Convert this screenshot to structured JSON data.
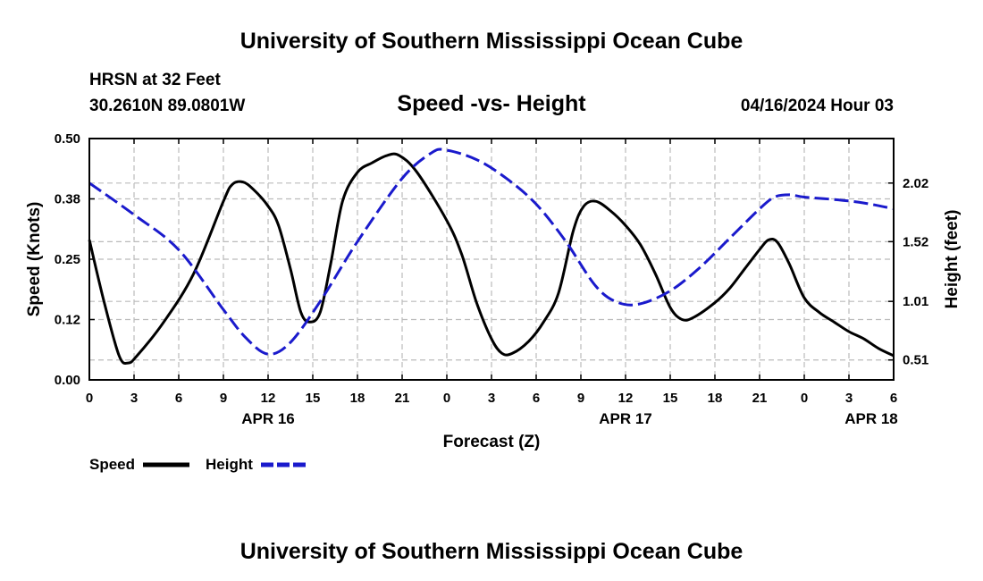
{
  "page": {
    "title_top": "University of Southern Mississippi Ocean Cube",
    "title_bottom": "University of Southern Mississippi Ocean Cube",
    "station_line1": "HRSN at 32 Feet",
    "station_line2": "30.2610N  89.0801W",
    "plot_title": "Speed -vs- Height",
    "datetime": "04/16/2024 Hour 03"
  },
  "colors": {
    "speed": "#000000",
    "height": "#1a1acc",
    "grid": "#bbbbbb"
  },
  "chart_data": {
    "type": "line",
    "title": "Speed -vs- Height",
    "xlabel": "Forecast (Z)",
    "ylabel": "Speed (Knots)",
    "y2label": "Height (feet)",
    "x_unit": "hours since Apr 16 00Z",
    "xlim": [
      0,
      54
    ],
    "ylim": [
      0,
      0.5
    ],
    "y2lim": [
      0.34,
      2.4
    ],
    "x_ticks": [
      0,
      3,
      6,
      9,
      12,
      15,
      18,
      21,
      24,
      27,
      30,
      33,
      36,
      39,
      42,
      45,
      48,
      51,
      54
    ],
    "x_tick_labels": [
      "0",
      "3",
      "6",
      "9",
      "12",
      "15",
      "18",
      "21",
      "0",
      "3",
      "6",
      "9",
      "12",
      "15",
      "18",
      "21",
      "0",
      "3",
      "6"
    ],
    "y_ticks": [
      0,
      0.125,
      0.25,
      0.375,
      0.5
    ],
    "y_tick_labels": [
      "0.00",
      "0.12",
      "0.25",
      "0.38",
      "0.50"
    ],
    "y2_ticks": [
      0.51,
      1.01,
      1.52,
      2.02
    ],
    "y2_tick_labels": [
      "0.51",
      "1.01",
      "1.52",
      "2.02"
    ],
    "date_labels": [
      {
        "x": 12,
        "label": "APR 16"
      },
      {
        "x": 36,
        "label": "APR 17"
      },
      {
        "x": 52.5,
        "label": "APR 18"
      }
    ],
    "legend": [
      "Speed",
      "Height"
    ],
    "grid": true,
    "series": [
      {
        "name": "Speed",
        "axis": "left",
        "style": "solid",
        "points": [
          [
            0,
            0.29
          ],
          [
            1,
            0.16
          ],
          [
            2,
            0.05
          ],
          [
            2.6,
            0.035
          ],
          [
            3.2,
            0.05
          ],
          [
            5,
            0.12
          ],
          [
            7,
            0.22
          ],
          [
            9,
            0.37
          ],
          [
            9.6,
            0.405
          ],
          [
            10.3,
            0.41
          ],
          [
            11,
            0.395
          ],
          [
            12,
            0.36
          ],
          [
            12.7,
            0.32
          ],
          [
            13.5,
            0.23
          ],
          [
            14.2,
            0.14
          ],
          [
            14.8,
            0.12
          ],
          [
            15.5,
            0.14
          ],
          [
            16.2,
            0.24
          ],
          [
            17,
            0.37
          ],
          [
            18,
            0.43
          ],
          [
            19,
            0.45
          ],
          [
            20,
            0.465
          ],
          [
            20.8,
            0.465
          ],
          [
            22,
            0.43
          ],
          [
            24,
            0.33
          ],
          [
            25,
            0.26
          ],
          [
            26,
            0.16
          ],
          [
            27,
            0.085
          ],
          [
            27.7,
            0.055
          ],
          [
            28.4,
            0.055
          ],
          [
            29.5,
            0.08
          ],
          [
            30.5,
            0.12
          ],
          [
            31.5,
            0.18
          ],
          [
            32.5,
            0.31
          ],
          [
            33.2,
            0.36
          ],
          [
            34,
            0.37
          ],
          [
            35,
            0.35
          ],
          [
            36,
            0.32
          ],
          [
            37,
            0.28
          ],
          [
            38,
            0.22
          ],
          [
            39,
            0.15
          ],
          [
            39.8,
            0.125
          ],
          [
            40.6,
            0.13
          ],
          [
            42,
            0.16
          ],
          [
            43,
            0.19
          ],
          [
            44,
            0.23
          ],
          [
            45,
            0.27
          ],
          [
            45.6,
            0.29
          ],
          [
            46.2,
            0.285
          ],
          [
            47,
            0.24
          ],
          [
            48,
            0.17
          ],
          [
            49,
            0.14
          ],
          [
            50,
            0.12
          ],
          [
            51,
            0.1
          ],
          [
            52,
            0.085
          ],
          [
            53,
            0.065
          ],
          [
            54,
            0.05
          ]
        ]
      },
      {
        "name": "Height",
        "axis": "right",
        "style": "dashed",
        "points": [
          [
            0,
            2.02
          ],
          [
            3,
            1.75
          ],
          [
            6,
            1.45
          ],
          [
            9,
            0.94
          ],
          [
            10.5,
            0.7
          ],
          [
            12,
            0.56
          ],
          [
            13.5,
            0.66
          ],
          [
            15.5,
            1.01
          ],
          [
            18,
            1.52
          ],
          [
            21,
            2.06
          ],
          [
            23,
            2.28
          ],
          [
            24,
            2.3
          ],
          [
            26,
            2.22
          ],
          [
            28,
            2.06
          ],
          [
            30,
            1.84
          ],
          [
            32,
            1.52
          ],
          [
            34,
            1.14
          ],
          [
            35.5,
            1.0
          ],
          [
            37,
            0.99
          ],
          [
            39,
            1.1
          ],
          [
            41,
            1.3
          ],
          [
            43,
            1.55
          ],
          [
            45,
            1.8
          ],
          [
            46,
            1.9
          ],
          [
            47,
            1.92
          ],
          [
            48,
            1.9
          ],
          [
            50,
            1.88
          ],
          [
            52,
            1.85
          ],
          [
            54,
            1.8
          ]
        ]
      }
    ]
  }
}
